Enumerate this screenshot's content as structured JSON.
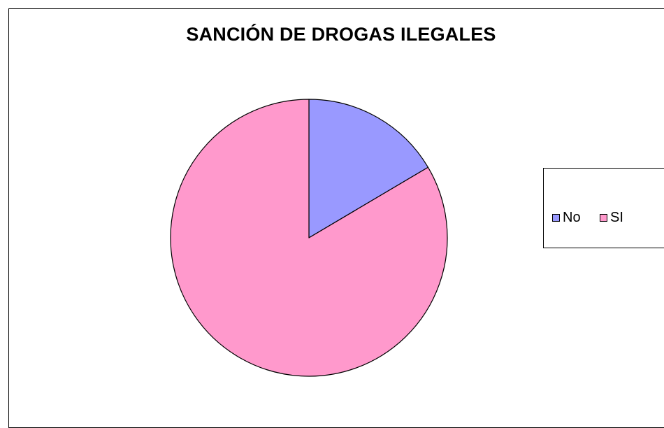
{
  "chart_data": {
    "type": "pie",
    "title": "SANCIÓN DE DROGAS ILEGALES",
    "categories": [
      "No",
      "SI"
    ],
    "values": [
      16.5,
      83.5
    ],
    "colors": [
      "#9999ff",
      "#ff99cc"
    ],
    "start_angle_deg": 0,
    "direction": "clockwise",
    "legend": {
      "position": "right",
      "entries": [
        "No",
        "SI"
      ]
    }
  }
}
